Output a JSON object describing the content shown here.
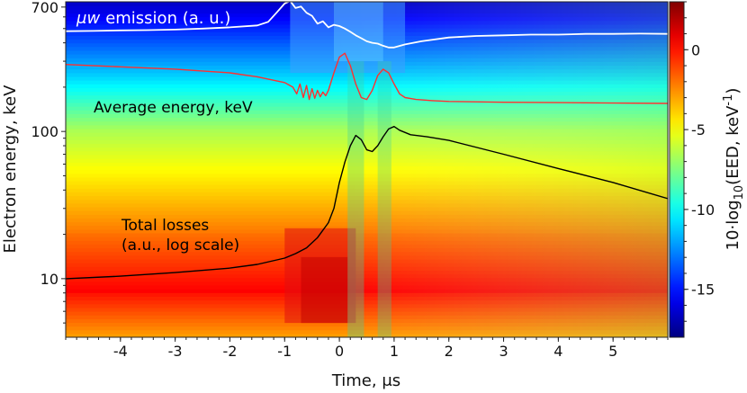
{
  "chart_data": {
    "type": "heatmap",
    "title": "",
    "xlabel": "Time, μs",
    "ylabel": "Electron energy, keV",
    "xlim": [
      -5,
      6
    ],
    "ylim": [
      4,
      760
    ],
    "yscale": "log",
    "x_ticks": [
      {
        "value": -4,
        "label": "-4"
      },
      {
        "value": -3,
        "label": "-3"
      },
      {
        "value": -2,
        "label": "-2"
      },
      {
        "value": -1,
        "label": "-1"
      },
      {
        "value": 0,
        "label": "0"
      },
      {
        "value": 1,
        "label": "1"
      },
      {
        "value": 2,
        "label": "2"
      },
      {
        "value": 3,
        "label": "3"
      },
      {
        "value": 4,
        "label": "4"
      },
      {
        "value": 5,
        "label": "5"
      }
    ],
    "y_ticks": [
      {
        "value": 10,
        "label": "10"
      },
      {
        "value": 100,
        "label": "100"
      },
      {
        "value": 700,
        "label": "700"
      }
    ],
    "colorbar": {
      "label": "10·log10(EED, keV-1)",
      "label_parts": {
        "pre": "10·log",
        "sub1": "10",
        "mid": "(EED, keV",
        "sup": "-1",
        "post": ")"
      },
      "range": [
        -18,
        3
      ],
      "ticks": [
        {
          "value": 0,
          "label": "0"
        },
        {
          "value": -5,
          "label": "-5"
        },
        {
          "value": -10,
          "label": "-10"
        },
        {
          "value": -15,
          "label": "-15"
        }
      ],
      "colormap": "jet",
      "colors": [
        "#00007f",
        "#0000ff",
        "#007fff",
        "#00ffff",
        "#7fff7f",
        "#ffff00",
        "#ff7f00",
        "#ff0000",
        "#7f0000"
      ]
    },
    "annotations": [
      {
        "text": "emission (a. u.)",
        "prefix": "μw",
        "color": "#ffffff"
      },
      {
        "text": "Average energy, keV",
        "color": "#000000"
      },
      {
        "text": "Total losses",
        "color": "#000000"
      },
      {
        "text": "(a.u., log scale)",
        "color": "#000000"
      }
    ],
    "series": [
      {
        "name": "μw emission (a. u.)",
        "color": "#ffffff",
        "unit": "a.u. (mapped to keV axis)",
        "x": [
          -5.0,
          -4.5,
          -4.0,
          -3.5,
          -3.0,
          -2.5,
          -2.0,
          -1.5,
          -1.3,
          -1.15,
          -1.0,
          -0.9,
          -0.8,
          -0.7,
          -0.6,
          -0.5,
          -0.4,
          -0.3,
          -0.2,
          -0.1,
          0.0,
          0.1,
          0.2,
          0.3,
          0.4,
          0.5,
          0.6,
          0.7,
          0.8,
          0.9,
          1.0,
          1.2,
          1.5,
          2.0,
          2.5,
          3.0,
          3.5,
          4.0,
          4.5,
          5.0,
          5.5,
          6.0
        ],
        "y": [
          480,
          482,
          486,
          488,
          492,
          500,
          510,
          525,
          555,
          640,
          740,
          770,
          690,
          705,
          640,
          610,
          540,
          560,
          510,
          530,
          520,
          500,
          475,
          450,
          430,
          410,
          400,
          395,
          382,
          372,
          372,
          390,
          410,
          435,
          445,
          450,
          455,
          455,
          460,
          460,
          462,
          460
        ]
      },
      {
        "name": "Average energy, keV",
        "color": "#ff3030",
        "unit": "keV",
        "x": [
          -5.0,
          -4.0,
          -3.0,
          -2.0,
          -1.5,
          -1.0,
          -0.85,
          -0.78,
          -0.72,
          -0.66,
          -0.6,
          -0.55,
          -0.5,
          -0.45,
          -0.4,
          -0.35,
          -0.3,
          -0.25,
          -0.2,
          -0.1,
          0.0,
          0.1,
          0.2,
          0.3,
          0.4,
          0.5,
          0.6,
          0.7,
          0.8,
          0.9,
          1.0,
          1.1,
          1.2,
          1.4,
          1.7,
          2.0,
          3.0,
          4.0,
          5.0,
          6.0
        ],
        "y": [
          285,
          275,
          265,
          250,
          235,
          215,
          200,
          180,
          210,
          170,
          205,
          165,
          195,
          168,
          190,
          172,
          185,
          175,
          190,
          250,
          320,
          340,
          280,
          210,
          170,
          165,
          190,
          240,
          265,
          250,
          210,
          180,
          170,
          165,
          162,
          160,
          158,
          157,
          156,
          155
        ]
      },
      {
        "name": "Total losses (a.u., log scale)",
        "color": "#000000",
        "unit": "a.u. (mapped to keV axis)",
        "x": [
          -5.0,
          -4.0,
          -3.0,
          -2.0,
          -1.5,
          -1.0,
          -0.8,
          -0.6,
          -0.4,
          -0.2,
          -0.1,
          0.0,
          0.1,
          0.2,
          0.3,
          0.4,
          0.5,
          0.6,
          0.7,
          0.8,
          0.9,
          1.0,
          1.1,
          1.3,
          1.6,
          2.0,
          3.0,
          4.0,
          5.0,
          6.0
        ],
        "y": [
          10.0,
          10.4,
          11.0,
          11.8,
          12.5,
          13.8,
          14.8,
          16.2,
          19.0,
          24.0,
          30.0,
          45.0,
          62.0,
          80.0,
          94.0,
          88.0,
          75.0,
          73.0,
          80.0,
          92.0,
          104.0,
          108.0,
          102.0,
          95.0,
          92.0,
          87.0,
          70.0,
          56.0,
          45.0,
          35.0
        ]
      }
    ]
  }
}
